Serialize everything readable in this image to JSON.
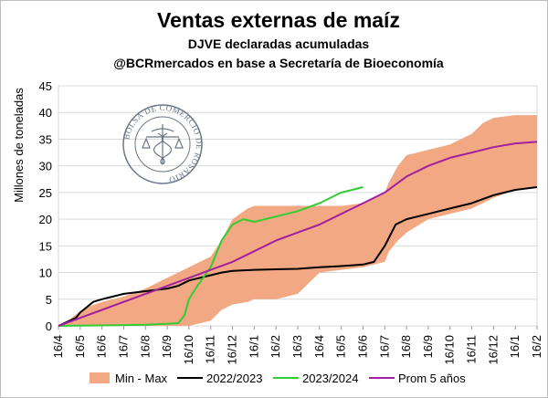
{
  "title": "Ventas externas de maíz",
  "subtitle1": "DJVE declaradas acumuladas",
  "subtitle2": "@BCRmercados en base a Secretaría de Bioeconomía",
  "logo_text": "BOLSA DE COMERCIO DE ROSARIO",
  "colors": {
    "band": "#f2a983",
    "s2223": "#000000",
    "s2324": "#33cc33",
    "prom": "#a020a0",
    "grid": "#d9d9d9"
  },
  "chart_data": {
    "type": "area",
    "ylabel": "Millones de toneladas",
    "ylim": [
      0,
      45
    ],
    "yticks": [
      0,
      5,
      10,
      15,
      20,
      25,
      30,
      35,
      40,
      45
    ],
    "xlim": [
      "16/4",
      "16/2"
    ],
    "xticks": [
      "16/4",
      "16/5",
      "16/6",
      "16/7",
      "16/8",
      "16/9",
      "16/10",
      "16/11",
      "16/12",
      "16/1",
      "16/2",
      "16/3",
      "16/4",
      "16/5",
      "16/6",
      "16/7",
      "16/8",
      "16/9",
      "16/10",
      "16/11",
      "16/12",
      "16/1",
      "16/2"
    ],
    "grid": true,
    "legend": "bottom",
    "band": {
      "name": "Min - Max",
      "x": [
        0,
        0.3,
        0.6,
        1,
        1.3,
        2,
        3,
        4,
        5,
        6,
        7,
        7.5,
        8,
        8.7,
        9,
        10,
        11,
        12,
        13,
        14,
        15,
        15.2,
        15.6,
        16,
        17,
        18,
        19,
        19.5,
        20,
        21,
        22
      ],
      "max": [
        0,
        0.3,
        1.5,
        2.8,
        3.5,
        4.5,
        5.5,
        7,
        9,
        11,
        13,
        16,
        20,
        22,
        22.5,
        22.5,
        22.5,
        22.5,
        22.5,
        23,
        25,
        27,
        30,
        32,
        33,
        34,
        36,
        38,
        39,
        39.5,
        39.5
      ],
      "min": [
        0,
        0,
        0,
        0,
        0,
        0,
        0,
        0,
        0,
        0,
        1,
        3,
        4,
        4.5,
        5,
        5,
        6,
        10,
        10.5,
        11,
        12,
        14,
        16,
        17.5,
        20,
        21,
        22,
        23,
        24,
        25.5,
        26
      ]
    },
    "series": [
      {
        "name": "2022/2023",
        "x": [
          0,
          0.8,
          1,
          1.3,
          1.6,
          2,
          2.5,
          3,
          4,
          5,
          5.5,
          6,
          7,
          7.5,
          8,
          9,
          10,
          11,
          12,
          13,
          14,
          14.5,
          15,
          15.5,
          16,
          17,
          18,
          19,
          20,
          21,
          22
        ],
        "y": [
          0,
          1.5,
          2.5,
          3.5,
          4.5,
          5,
          5.5,
          6,
          6.5,
          7,
          7.5,
          8.5,
          9.5,
          10,
          10.3,
          10.5,
          10.6,
          10.7,
          11,
          11.2,
          11.5,
          12,
          15,
          19,
          20,
          21,
          22,
          23,
          24.5,
          25.5,
          26
        ]
      },
      {
        "name": "2023/2024",
        "x": [
          0,
          4,
          5.5,
          5.8,
          6,
          6.3,
          7,
          7.5,
          8,
          8.5,
          9,
          10,
          11,
          12,
          13,
          13.5,
          14
        ],
        "y": [
          0,
          0.2,
          0.5,
          2,
          5,
          7,
          11,
          16,
          19,
          20,
          19.5,
          20.5,
          21.5,
          23,
          25,
          25.5,
          26
        ]
      },
      {
        "name": "Prom 5 años",
        "x": [
          0,
          1,
          2,
          3,
          4,
          5,
          6,
          7,
          8,
          9,
          10,
          11,
          12,
          13,
          14,
          15,
          16,
          17,
          18,
          19,
          20,
          21,
          22
        ],
        "y": [
          0,
          1.5,
          3,
          4.5,
          6,
          7.5,
          9,
          10.5,
          12,
          14,
          16,
          17.5,
          19,
          21,
          23,
          25,
          28,
          30,
          31.5,
          32.5,
          33.5,
          34.2,
          34.5
        ]
      }
    ]
  }
}
